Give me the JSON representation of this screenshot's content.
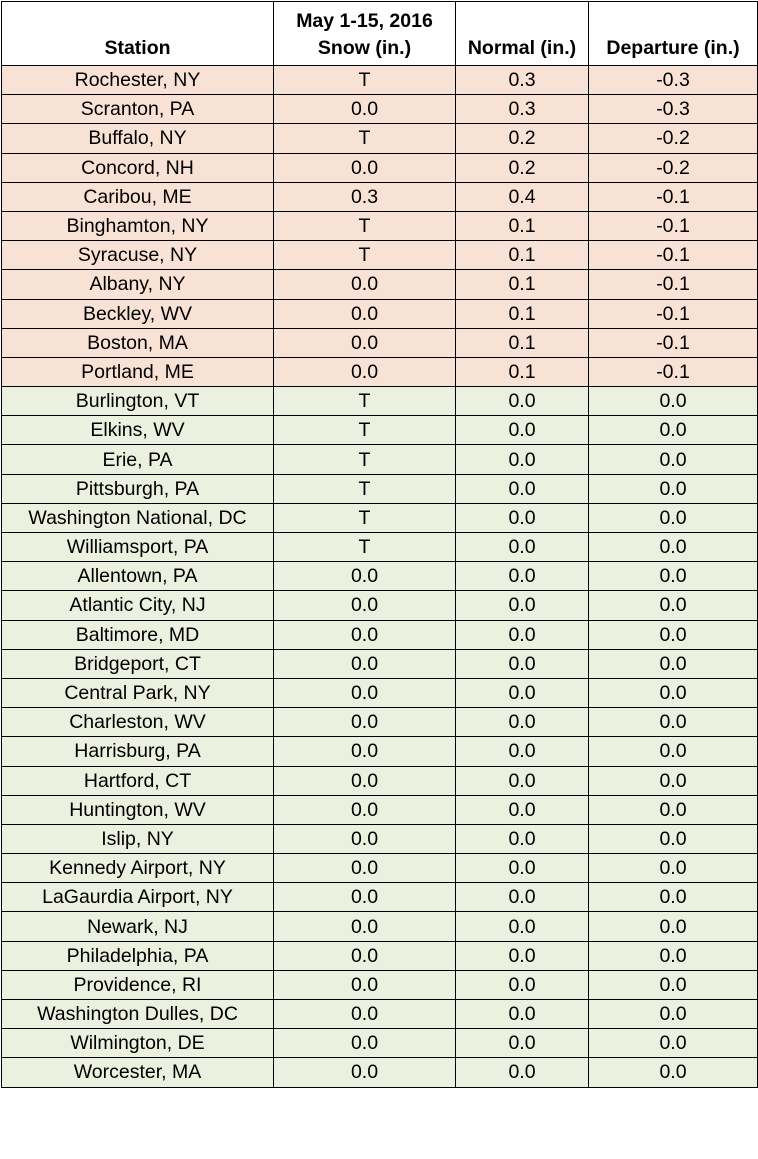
{
  "table": {
    "headers": {
      "station": "Station",
      "snow_line1": "May 1-15, 2016",
      "snow_line2": "Snow (in.)",
      "normal": "Normal (in.)",
      "departure": "Departure (in.)"
    },
    "colors": {
      "negative_departure_row": "#f8e2d5",
      "zero_departure_row": "#ebf0df"
    },
    "rows": [
      {
        "station": "Rochester, NY",
        "snow": "T",
        "normal": "0.3",
        "departure": "-0.3",
        "group": "neg"
      },
      {
        "station": "Scranton, PA",
        "snow": "0.0",
        "normal": "0.3",
        "departure": "-0.3",
        "group": "neg"
      },
      {
        "station": "Buffalo, NY",
        "snow": "T",
        "normal": "0.2",
        "departure": "-0.2",
        "group": "neg"
      },
      {
        "station": "Concord, NH",
        "snow": "0.0",
        "normal": "0.2",
        "departure": "-0.2",
        "group": "neg"
      },
      {
        "station": "Caribou, ME",
        "snow": "0.3",
        "normal": "0.4",
        "departure": "-0.1",
        "group": "neg"
      },
      {
        "station": "Binghamton, NY",
        "snow": "T",
        "normal": "0.1",
        "departure": "-0.1",
        "group": "neg"
      },
      {
        "station": "Syracuse, NY",
        "snow": "T",
        "normal": "0.1",
        "departure": "-0.1",
        "group": "neg"
      },
      {
        "station": "Albany, NY",
        "snow": "0.0",
        "normal": "0.1",
        "departure": "-0.1",
        "group": "neg"
      },
      {
        "station": "Beckley, WV",
        "snow": "0.0",
        "normal": "0.1",
        "departure": "-0.1",
        "group": "neg"
      },
      {
        "station": "Boston, MA",
        "snow": "0.0",
        "normal": "0.1",
        "departure": "-0.1",
        "group": "neg"
      },
      {
        "station": "Portland, ME",
        "snow": "0.0",
        "normal": "0.1",
        "departure": "-0.1",
        "group": "neg"
      },
      {
        "station": "Burlington, VT",
        "snow": "T",
        "normal": "0.0",
        "departure": "0.0",
        "group": "zero"
      },
      {
        "station": "Elkins, WV",
        "snow": "T",
        "normal": "0.0",
        "departure": "0.0",
        "group": "zero"
      },
      {
        "station": "Erie, PA",
        "snow": "T",
        "normal": "0.0",
        "departure": "0.0",
        "group": "zero"
      },
      {
        "station": "Pittsburgh, PA",
        "snow": "T",
        "normal": "0.0",
        "departure": "0.0",
        "group": "zero"
      },
      {
        "station": "Washington National, DC",
        "snow": "T",
        "normal": "0.0",
        "departure": "0.0",
        "group": "zero"
      },
      {
        "station": "Williamsport, PA",
        "snow": "T",
        "normal": "0.0",
        "departure": "0.0",
        "group": "zero"
      },
      {
        "station": "Allentown, PA",
        "snow": "0.0",
        "normal": "0.0",
        "departure": "0.0",
        "group": "zero"
      },
      {
        "station": "Atlantic City, NJ",
        "snow": "0.0",
        "normal": "0.0",
        "departure": "0.0",
        "group": "zero"
      },
      {
        "station": "Baltimore, MD",
        "snow": "0.0",
        "normal": "0.0",
        "departure": "0.0",
        "group": "zero"
      },
      {
        "station": "Bridgeport, CT",
        "snow": "0.0",
        "normal": "0.0",
        "departure": "0.0",
        "group": "zero"
      },
      {
        "station": "Central Park, NY",
        "snow": "0.0",
        "normal": "0.0",
        "departure": "0.0",
        "group": "zero"
      },
      {
        "station": "Charleston, WV",
        "snow": "0.0",
        "normal": "0.0",
        "departure": "0.0",
        "group": "zero"
      },
      {
        "station": "Harrisburg, PA",
        "snow": "0.0",
        "normal": "0.0",
        "departure": "0.0",
        "group": "zero"
      },
      {
        "station": "Hartford, CT",
        "snow": "0.0",
        "normal": "0.0",
        "departure": "0.0",
        "group": "zero"
      },
      {
        "station": "Huntington, WV",
        "snow": "0.0",
        "normal": "0.0",
        "departure": "0.0",
        "group": "zero"
      },
      {
        "station": "Islip, NY",
        "snow": "0.0",
        "normal": "0.0",
        "departure": "0.0",
        "group": "zero"
      },
      {
        "station": "Kennedy Airport, NY",
        "snow": "0.0",
        "normal": "0.0",
        "departure": "0.0",
        "group": "zero"
      },
      {
        "station": "LaGaurdia Airport, NY",
        "snow": "0.0",
        "normal": "0.0",
        "departure": "0.0",
        "group": "zero"
      },
      {
        "station": "Newark, NJ",
        "snow": "0.0",
        "normal": "0.0",
        "departure": "0.0",
        "group": "zero"
      },
      {
        "station": "Philadelphia, PA",
        "snow": "0.0",
        "normal": "0.0",
        "departure": "0.0",
        "group": "zero"
      },
      {
        "station": "Providence, RI",
        "snow": "0.0",
        "normal": "0.0",
        "departure": "0.0",
        "group": "zero"
      },
      {
        "station": "Washington Dulles, DC",
        "snow": "0.0",
        "normal": "0.0",
        "departure": "0.0",
        "group": "zero"
      },
      {
        "station": "Wilmington, DE",
        "snow": "0.0",
        "normal": "0.0",
        "departure": "0.0",
        "group": "zero"
      },
      {
        "station": "Worcester, MA",
        "snow": "0.0",
        "normal": "0.0",
        "departure": "0.0",
        "group": "zero"
      }
    ]
  }
}
